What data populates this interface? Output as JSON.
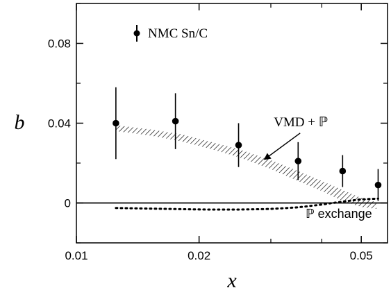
{
  "chart_data": {
    "type": "scatter",
    "xlabel": "x",
    "ylabel": "b",
    "x_scale": "log",
    "xlim": [
      0.01,
      0.058
    ],
    "ylim": [
      -0.02,
      0.1
    ],
    "x_ticks": [
      0.01,
      0.02,
      0.05
    ],
    "x_tick_labels": [
      "0.01",
      "0.02",
      "0.05"
    ],
    "y_ticks": [
      0,
      0.04,
      0.08
    ],
    "y_tick_labels": [
      "0",
      "0.04",
      "0.08"
    ],
    "grid": false,
    "legend": {
      "position": "top-left",
      "entries": [
        "NMC Sn/C"
      ]
    },
    "series": [
      {
        "name": "NMC Sn/C",
        "kind": "points-with-errorbars",
        "points": [
          {
            "x": 0.0125,
            "y": 0.04,
            "err": 0.018
          },
          {
            "x": 0.0175,
            "y": 0.041,
            "err": 0.014
          },
          {
            "x": 0.025,
            "y": 0.029,
            "err": 0.011
          },
          {
            "x": 0.035,
            "y": 0.021,
            "err": 0.0095
          },
          {
            "x": 0.045,
            "y": 0.016,
            "err": 0.008
          },
          {
            "x": 0.055,
            "y": 0.009,
            "err": 0.008
          }
        ]
      },
      {
        "name": "VMD + ℙ",
        "kind": "hatched-band",
        "x": [
          0.0125,
          0.015,
          0.018,
          0.021,
          0.025,
          0.03,
          0.035,
          0.04,
          0.045,
          0.05,
          0.0545
        ],
        "upper": [
          0.039,
          0.037,
          0.0345,
          0.031,
          0.027,
          0.0215,
          0.016,
          0.011,
          0.0065,
          0.0025,
          0.0005
        ],
        "lower": [
          0.036,
          0.034,
          0.031,
          0.0275,
          0.023,
          0.017,
          0.011,
          0.006,
          0.001,
          -0.002,
          -0.003
        ]
      },
      {
        "name": "ℙ exchange",
        "kind": "dotted-line",
        "x": [
          0.0125,
          0.015,
          0.018,
          0.021,
          0.025,
          0.03,
          0.035,
          0.04,
          0.045,
          0.05,
          0.055
        ],
        "y": [
          -0.0025,
          -0.0028,
          -0.0031,
          -0.0033,
          -0.0033,
          -0.003,
          -0.0022,
          -0.0008,
          0.0007,
          0.0018,
          0.0022
        ]
      }
    ],
    "annotations": [
      {
        "text": "VMD + ℙ",
        "at_x": 0.0305,
        "at_y": 0.0385,
        "arrow_to_x": 0.029,
        "arrow_to_y": 0.022
      },
      {
        "text": "ℙ exchange",
        "at_x": 0.0365,
        "at_y": -0.0075
      }
    ]
  }
}
